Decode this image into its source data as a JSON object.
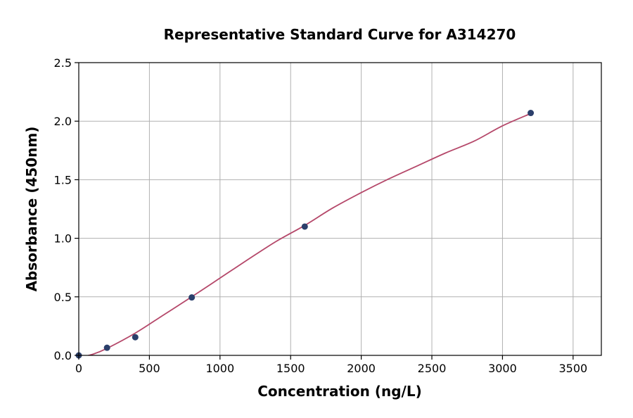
{
  "chart_data": {
    "type": "scatter",
    "title": "Representative Standard Curve for A314270",
    "xlabel": "Concentration (ng/L)",
    "ylabel": "Absorbance (450nm)",
    "xlim": [
      0,
      3700
    ],
    "ylim": [
      0,
      2.5
    ],
    "xticks": [
      0,
      500,
      1000,
      1500,
      2000,
      2500,
      3000,
      3500
    ],
    "xtick_labels": [
      "0",
      "500",
      "1000",
      "1500",
      "2000",
      "2500",
      "3000",
      "3500"
    ],
    "yticks": [
      0,
      0.5,
      1.0,
      1.5,
      2.0,
      2.5
    ],
    "ytick_labels": [
      "0.0",
      "0.5",
      "1.0",
      "1.5",
      "2.0",
      "2.5"
    ],
    "grid": true,
    "series": [
      {
        "kind": "points",
        "x": [
          0,
          200,
          400,
          800,
          1600,
          3200
        ],
        "y": [
          0.0,
          0.065,
          0.155,
          0.495,
          1.1,
          2.07
        ],
        "color": "#2b3f6b"
      },
      {
        "kind": "fit-curve",
        "x": [
          0,
          100,
          200,
          400,
          600,
          800,
          1000,
          1200,
          1400,
          1600,
          1800,
          2000,
          2200,
          2400,
          2600,
          2800,
          3000,
          3200
        ],
        "y": [
          -0.02,
          0.01,
          0.06,
          0.19,
          0.345,
          0.5,
          0.66,
          0.82,
          0.975,
          1.11,
          1.26,
          1.39,
          1.51,
          1.62,
          1.73,
          1.83,
          1.96,
          2.065
        ],
        "color": "#b5486a"
      }
    ]
  }
}
